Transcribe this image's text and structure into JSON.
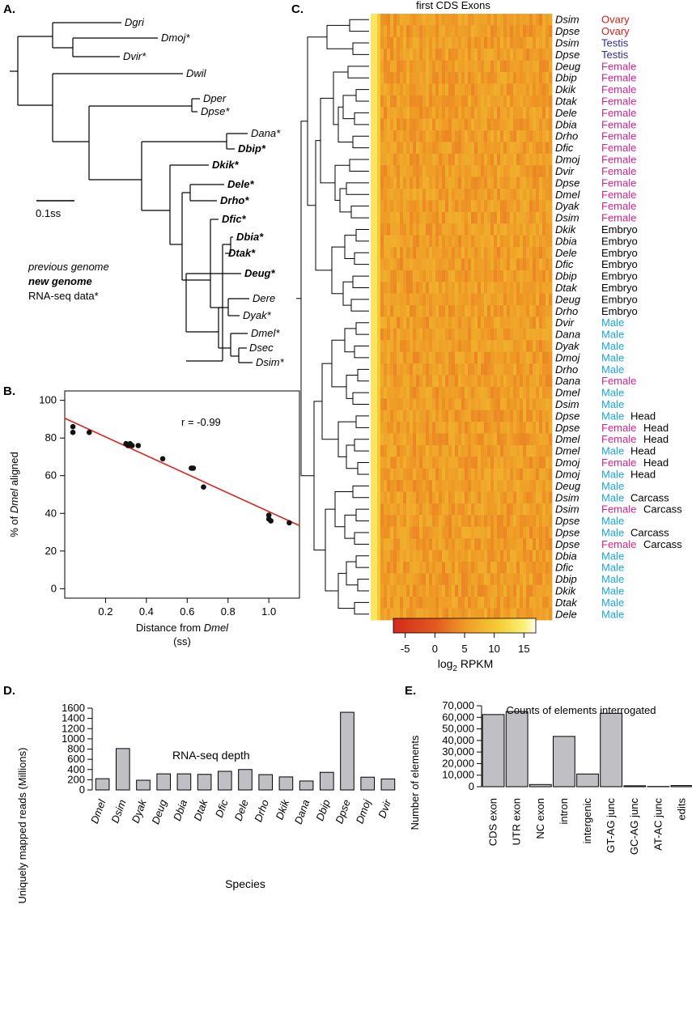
{
  "panels": {
    "a": {
      "label": "A.",
      "scale_bar_label": "0.1ss",
      "legend": [
        {
          "text": "previous genome",
          "style": "italic"
        },
        {
          "text": "new genome",
          "style": "bold-italic"
        },
        {
          "text": "RNA-seq data*",
          "style": "normal"
        }
      ],
      "tree_leaves": [
        {
          "name": "Dgri",
          "bold": false
        },
        {
          "name": "Dmoj*",
          "bold": false
        },
        {
          "name": "Dvir*",
          "bold": false
        },
        {
          "name": "Dwil",
          "bold": false
        },
        {
          "name": "Dper",
          "bold": false
        },
        {
          "name": "Dpse*",
          "bold": false
        },
        {
          "name": "Dana*",
          "bold": false
        },
        {
          "name": "Dbip*",
          "bold": true
        },
        {
          "name": "Dkik*",
          "bold": true
        },
        {
          "name": "Dele*",
          "bold": true
        },
        {
          "name": "Drho*",
          "bold": true
        },
        {
          "name": "Dfic*",
          "bold": true
        },
        {
          "name": "Dbia*",
          "bold": true
        },
        {
          "name": "Dtak*",
          "bold": true
        },
        {
          "name": "Deug*",
          "bold": true
        },
        {
          "name": "Dere",
          "bold": false
        },
        {
          "name": "Dyak*",
          "bold": false
        },
        {
          "name": "Dmel*",
          "bold": false
        },
        {
          "name": "Dsec",
          "bold": false
        },
        {
          "name": "Dsim*",
          "bold": false
        }
      ]
    },
    "b": {
      "label": "B."
    },
    "c": {
      "label": "C.",
      "title": "first CDS Exons",
      "colorbar_label_main": "log",
      "colorbar_label_sub": "2",
      "colorbar_label_rest": " RPKM",
      "colorbar_ticks": [
        "-5",
        "0",
        "5",
        "10",
        "15"
      ],
      "colorbar_range": [
        -7,
        17
      ],
      "colors": {
        "Ovary": "#d0201b",
        "Testis": "#2e2c8e",
        "Female": "#d6218a",
        "Male": "#17a7df",
        "Embryo": "#000000"
      },
      "rows": [
        {
          "species": "Dsim",
          "sex": "Ovary",
          "tissue": ""
        },
        {
          "species": "Dpse",
          "sex": "Ovary",
          "tissue": ""
        },
        {
          "species": "Dsim",
          "sex": "Testis",
          "tissue": ""
        },
        {
          "species": "Dpse",
          "sex": "Testis",
          "tissue": ""
        },
        {
          "species": "Deug",
          "sex": "Female",
          "tissue": ""
        },
        {
          "species": "Dbip",
          "sex": "Female",
          "tissue": ""
        },
        {
          "species": "Dkik",
          "sex": "Female",
          "tissue": ""
        },
        {
          "species": "Dtak",
          "sex": "Female",
          "tissue": ""
        },
        {
          "species": "Dele",
          "sex": "Female",
          "tissue": ""
        },
        {
          "species": "Dbia",
          "sex": "Female",
          "tissue": ""
        },
        {
          "species": "Drho",
          "sex": "Female",
          "tissue": ""
        },
        {
          "species": "Dfic",
          "sex": "Female",
          "tissue": ""
        },
        {
          "species": "Dmoj",
          "sex": "Female",
          "tissue": ""
        },
        {
          "species": "Dvir",
          "sex": "Female",
          "tissue": ""
        },
        {
          "species": "Dpse",
          "sex": "Female",
          "tissue": ""
        },
        {
          "species": "Dmel",
          "sex": "Female",
          "tissue": ""
        },
        {
          "species": "Dyak",
          "sex": "Female",
          "tissue": ""
        },
        {
          "species": "Dsim",
          "sex": "Female",
          "tissue": ""
        },
        {
          "species": "Dkik",
          "sex": "Embryo",
          "tissue": ""
        },
        {
          "species": "Dbia",
          "sex": "Embryo",
          "tissue": ""
        },
        {
          "species": "Dele",
          "sex": "Embryo",
          "tissue": ""
        },
        {
          "species": "Dfic",
          "sex": "Embryo",
          "tissue": ""
        },
        {
          "species": "Dbip",
          "sex": "Embryo",
          "tissue": ""
        },
        {
          "species": "Dtak",
          "sex": "Embryo",
          "tissue": ""
        },
        {
          "species": "Deug",
          "sex": "Embryo",
          "tissue": ""
        },
        {
          "species": "Drho",
          "sex": "Embryo",
          "tissue": ""
        },
        {
          "species": "Dvir",
          "sex": "Male",
          "tissue": ""
        },
        {
          "species": "Dana",
          "sex": "Male",
          "tissue": ""
        },
        {
          "species": "Dyak",
          "sex": "Male",
          "tissue": ""
        },
        {
          "species": "Dmoj",
          "sex": "Male",
          "tissue": ""
        },
        {
          "species": "Drho",
          "sex": "Male",
          "tissue": ""
        },
        {
          "species": "Dana",
          "sex": "Female",
          "tissue": ""
        },
        {
          "species": "Dmel",
          "sex": "Male",
          "tissue": ""
        },
        {
          "species": "Dsim",
          "sex": "Male",
          "tissue": ""
        },
        {
          "species": "Dpse",
          "sex": "Male",
          "tissue": "Head"
        },
        {
          "species": "Dpse",
          "sex": "Female",
          "tissue": "Head"
        },
        {
          "species": "Dmel",
          "sex": "Female",
          "tissue": "Head"
        },
        {
          "species": "Dmel",
          "sex": "Male",
          "tissue": "Head"
        },
        {
          "species": "Dmoj",
          "sex": "Female",
          "tissue": "Head"
        },
        {
          "species": "Dmoj",
          "sex": "Male",
          "tissue": "Head"
        },
        {
          "species": "Deug",
          "sex": "Male",
          "tissue": ""
        },
        {
          "species": "Dsim",
          "sex": "Male",
          "tissue": "Carcass"
        },
        {
          "species": "Dsim",
          "sex": "Female",
          "tissue": "Carcass"
        },
        {
          "species": "Dpse",
          "sex": "Male",
          "tissue": ""
        },
        {
          "species": "Dpse",
          "sex": "Male",
          "tissue": "Carcass"
        },
        {
          "species": "Dpse",
          "sex": "Female",
          "tissue": "Carcass"
        },
        {
          "species": "Dbia",
          "sex": "Male",
          "tissue": ""
        },
        {
          "species": "Dfic",
          "sex": "Male",
          "tissue": ""
        },
        {
          "species": "Dbip",
          "sex": "Male",
          "tissue": ""
        },
        {
          "species": "Dkik",
          "sex": "Male",
          "tissue": ""
        },
        {
          "species": "Dtak",
          "sex": "Male",
          "tissue": ""
        },
        {
          "species": "Dele",
          "sex": "Male",
          "tissue": ""
        }
      ]
    },
    "d": {
      "label": "D."
    },
    "e": {
      "label": "E."
    }
  },
  "chart_data": [
    {
      "type": "scatter",
      "panel": "B",
      "annotation": "r = -0.99",
      "xlabel_prefix": "Distance from ",
      "xlabel_italic": "Dmel",
      "xlabel_line2": "(ss)",
      "ylabel_prefix": "% of ",
      "ylabel_italic": "Dmel",
      "ylabel_suffix": " aligned",
      "xlim": [
        0.0,
        1.15
      ],
      "ylim": [
        -5,
        105
      ],
      "xticks": [
        "0.2",
        "0.4",
        "0.6",
        "0.8",
        "1.0"
      ],
      "yticks": [
        "0",
        "20",
        "40",
        "60",
        "80",
        "100"
      ],
      "points": [
        {
          "x": 0.04,
          "y": 86
        },
        {
          "x": 0.04,
          "y": 83
        },
        {
          "x": 0.12,
          "y": 83
        },
        {
          "x": 0.3,
          "y": 77
        },
        {
          "x": 0.31,
          "y": 76
        },
        {
          "x": 0.32,
          "y": 77
        },
        {
          "x": 0.33,
          "y": 76
        },
        {
          "x": 0.36,
          "y": 76
        },
        {
          "x": 0.48,
          "y": 69
        },
        {
          "x": 0.62,
          "y": 64
        },
        {
          "x": 0.63,
          "y": 64
        },
        {
          "x": 0.68,
          "y": 54
        },
        {
          "x": 1.0,
          "y": 39
        },
        {
          "x": 1.0,
          "y": 37
        },
        {
          "x": 1.01,
          "y": 36
        },
        {
          "x": 1.1,
          "y": 35
        }
      ],
      "fit_line": {
        "x": [
          0.0,
          1.15
        ],
        "y": [
          90.5,
          33.5
        ],
        "color": "#d9241c"
      }
    },
    {
      "type": "bar",
      "panel": "D",
      "title": "RNA-seq depth",
      "xlabel": "Species",
      "ylabel": "Uniquely mapped reads (Millions)",
      "ylim": [
        0,
        1600
      ],
      "yticks": [
        "0",
        "200",
        "400",
        "600",
        "800",
        "1000",
        "1200",
        "1400",
        "1600"
      ],
      "categories": [
        "Dmel",
        "Dsim",
        "Dyak",
        "Deug",
        "Dbia",
        "Dtak",
        "Dfic",
        "Dele",
        "Drho",
        "Dkik",
        "Dana",
        "Dbip",
        "Dpse",
        "Dmoj",
        "Dvir"
      ],
      "values": [
        220,
        810,
        190,
        315,
        315,
        305,
        365,
        400,
        300,
        255,
        175,
        345,
        1520,
        250,
        215
      ],
      "bar_color": "#bfbfc4"
    },
    {
      "type": "bar",
      "panel": "E",
      "title": "Counts of elements interrogated",
      "xlabel": "",
      "ylabel": "Number of elements",
      "ylim": [
        0,
        70000
      ],
      "yticks": [
        "0",
        "10,000",
        "20,000",
        "30,000",
        "40,000",
        "50,000",
        "60,000",
        "70,000"
      ],
      "categories": [
        "CDS exon",
        "UTR exon",
        "NC exon",
        "intron",
        "intergenic",
        "GT-AG junc",
        "GC-AG junc",
        "AT-AC junc",
        "edits"
      ],
      "values": [
        62400,
        65000,
        1900,
        43500,
        11000,
        63500,
        800,
        200,
        1000
      ],
      "bar_color": "#bfbfc4"
    }
  ]
}
